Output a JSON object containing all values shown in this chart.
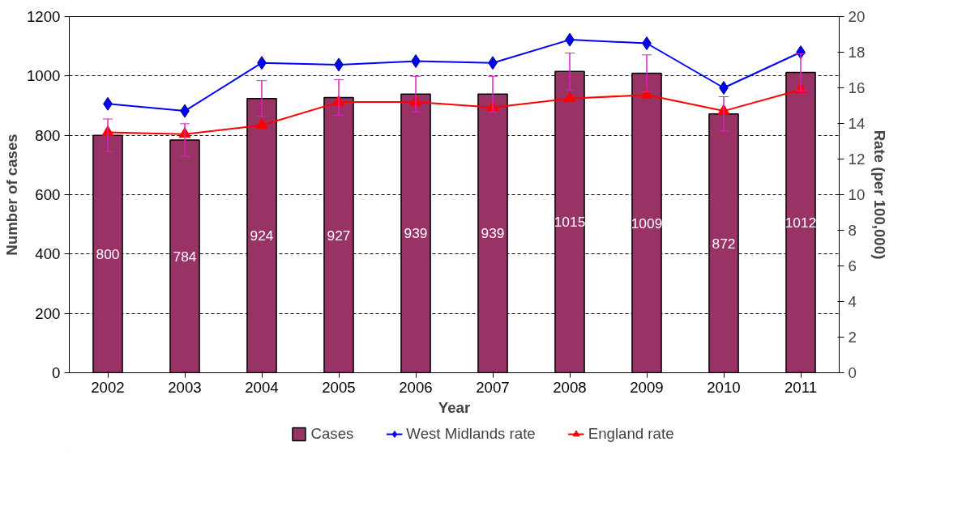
{
  "chart_data": {
    "type": "bar",
    "xlabel": "Year",
    "ylabel": "Number of cases",
    "y2label": "Rate (per 100,000)",
    "categories": [
      "2002",
      "2003",
      "2004",
      "2005",
      "2006",
      "2007",
      "2008",
      "2009",
      "2010",
      "2011"
    ],
    "series": [
      {
        "name": "Cases",
        "color": "#993366",
        "values": [
          800,
          784,
          924,
          927,
          939,
          939,
          1015,
          1009,
          872,
          1012
        ],
        "errors": [
          55,
          55,
          60,
          60,
          60,
          60,
          62,
          62,
          58,
          62
        ],
        "data_labels": true
      },
      {
        "name": "West Midlands rate",
        "type": "line",
        "axis": "y2",
        "color": "#0000ff",
        "marker": "diamond",
        "values": [
          15.1,
          14.7,
          17.4,
          17.3,
          17.5,
          17.4,
          18.7,
          18.5,
          16.0,
          18.0
        ]
      },
      {
        "name": "England rate",
        "type": "line",
        "axis": "y2",
        "color": "#ff0000",
        "marker": "triangle",
        "values": [
          13.5,
          13.4,
          13.9,
          15.2,
          15.2,
          14.9,
          15.4,
          15.6,
          14.7,
          15.9
        ]
      }
    ],
    "ylim": [
      0,
      1200
    ],
    "yticks": [
      0,
      200,
      400,
      600,
      800,
      1000,
      1200
    ],
    "y2lim": [
      0,
      20
    ],
    "y2ticks": [
      0,
      2,
      4,
      6,
      8,
      10,
      12,
      14,
      16,
      18,
      20
    ],
    "grid": "y",
    "legend": "bottom"
  }
}
